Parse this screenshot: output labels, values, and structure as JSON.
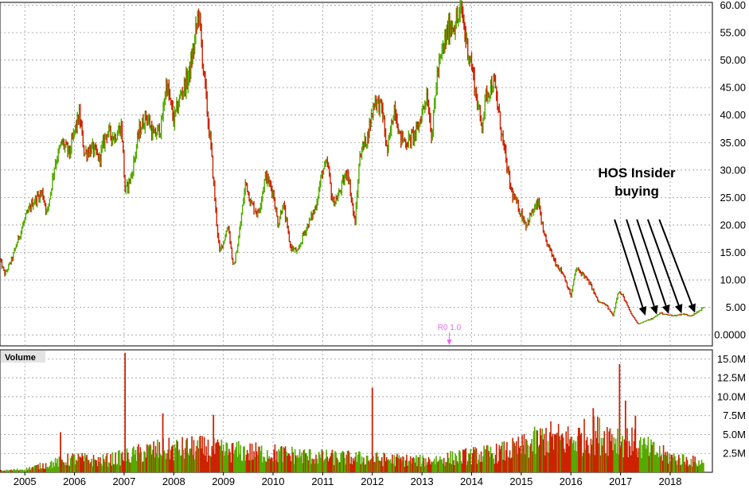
{
  "colors": {
    "up": "#55aa00",
    "down": "#cc2200",
    "grid": "#999999",
    "marker": "#ee66ee",
    "arrow": "#000000"
  },
  "annotation": {
    "line1": "HOS Insider",
    "line2": "buying"
  },
  "marker": {
    "label": "R0 1.0",
    "x": 2013.55
  },
  "volume_panel": {
    "title": "Volume"
  },
  "chart_data": {
    "type": "ohlc",
    "title": "",
    "price_axis": {
      "ylim": [
        -2,
        60.5
      ],
      "ticks": [
        60,
        55,
        50,
        45,
        40,
        35,
        30,
        25,
        20,
        15,
        10,
        5,
        0
      ],
      "tick_labels": [
        "60.00",
        "55.00",
        "50.00",
        "45.00",
        "40.00",
        "35.00",
        "30.00",
        "25.00",
        "20.00",
        "15.00",
        "10.00",
        "5.00",
        "0.0000"
      ]
    },
    "volume_axis": {
      "ylim": [
        0,
        16.2
      ],
      "ticks": [
        15,
        12.5,
        10,
        7.5,
        5,
        2.5
      ],
      "tick_labels": [
        "15.0M",
        "12.5M",
        "10.0M",
        "7.5M",
        "5.0M",
        "2.5M"
      ]
    },
    "x_axis": {
      "xlim": [
        2004.5,
        2018.85
      ],
      "years": [
        2005,
        2006,
        2007,
        2008,
        2009,
        2010,
        2011,
        2012,
        2013,
        2014,
        2015,
        2016,
        2017,
        2018
      ],
      "tick_labels": [
        "2005",
        "2006",
        "2007",
        "2008",
        "2009",
        "2010",
        "2011",
        "2012",
        "2013",
        "2014",
        "2015",
        "2016",
        "2017",
        "2018"
      ]
    },
    "grid": true,
    "price_path": [
      [
        2004.5,
        13.5
      ],
      [
        2004.6,
        11
      ],
      [
        2004.75,
        14
      ],
      [
        2004.85,
        17
      ],
      [
        2005.0,
        21
      ],
      [
        2005.15,
        24
      ],
      [
        2005.35,
        26
      ],
      [
        2005.45,
        22
      ],
      [
        2005.6,
        31
      ],
      [
        2005.75,
        35
      ],
      [
        2005.9,
        33
      ],
      [
        2006.0,
        37
      ],
      [
        2006.1,
        40
      ],
      [
        2006.2,
        33
      ],
      [
        2006.35,
        34
      ],
      [
        2006.5,
        32
      ],
      [
        2006.65,
        37
      ],
      [
        2006.8,
        36
      ],
      [
        2006.95,
        38
      ],
      [
        2007.02,
        26
      ],
      [
        2007.15,
        29
      ],
      [
        2007.3,
        37
      ],
      [
        2007.45,
        40
      ],
      [
        2007.6,
        36
      ],
      [
        2007.75,
        38
      ],
      [
        2007.85,
        46
      ],
      [
        2008.0,
        39
      ],
      [
        2008.15,
        44
      ],
      [
        2008.3,
        47
      ],
      [
        2008.4,
        52
      ],
      [
        2008.5,
        59
      ],
      [
        2008.6,
        48
      ],
      [
        2008.7,
        38
      ],
      [
        2008.75,
        34
      ],
      [
        2008.85,
        22
      ],
      [
        2008.92,
        15
      ],
      [
        2009.0,
        17
      ],
      [
        2009.1,
        20
      ],
      [
        2009.2,
        12
      ],
      [
        2009.3,
        17
      ],
      [
        2009.45,
        28
      ],
      [
        2009.55,
        24
      ],
      [
        2009.7,
        22
      ],
      [
        2009.85,
        29
      ],
      [
        2010.0,
        26
      ],
      [
        2010.1,
        20
      ],
      [
        2010.2,
        24
      ],
      [
        2010.35,
        16
      ],
      [
        2010.5,
        15
      ],
      [
        2010.6,
        18
      ],
      [
        2010.75,
        21
      ],
      [
        2010.85,
        23
      ],
      [
        2011.0,
        30
      ],
      [
        2011.1,
        31
      ],
      [
        2011.2,
        24
      ],
      [
        2011.3,
        25
      ],
      [
        2011.5,
        30
      ],
      [
        2011.65,
        20
      ],
      [
        2011.75,
        33
      ],
      [
        2011.9,
        36
      ],
      [
        2012.05,
        43
      ],
      [
        2012.2,
        41
      ],
      [
        2012.3,
        33
      ],
      [
        2012.45,
        42
      ],
      [
        2012.55,
        36
      ],
      [
        2012.7,
        35
      ],
      [
        2012.9,
        37
      ],
      [
        2013.1,
        44
      ],
      [
        2013.2,
        36
      ],
      [
        2013.3,
        47
      ],
      [
        2013.45,
        53
      ],
      [
        2013.55,
        56
      ],
      [
        2013.7,
        57
      ],
      [
        2013.8,
        59
      ],
      [
        2013.9,
        53
      ],
      [
        2014.0,
        49
      ],
      [
        2014.1,
        43
      ],
      [
        2014.2,
        38
      ],
      [
        2014.3,
        44
      ],
      [
        2014.45,
        46
      ],
      [
        2014.55,
        40
      ],
      [
        2014.7,
        31
      ],
      [
        2014.8,
        26
      ],
      [
        2014.95,
        23
      ],
      [
        2015.1,
        20
      ],
      [
        2015.2,
        22
      ],
      [
        2015.35,
        24
      ],
      [
        2015.45,
        18
      ],
      [
        2015.55,
        16
      ],
      [
        2015.7,
        13
      ],
      [
        2015.85,
        11
      ],
      [
        2016.0,
        7
      ],
      [
        2016.1,
        12
      ],
      [
        2016.25,
        11
      ],
      [
        2016.4,
        9
      ],
      [
        2016.55,
        6
      ],
      [
        2016.7,
        5.5
      ],
      [
        2016.85,
        3.5
      ],
      [
        2016.95,
        8
      ],
      [
        2017.05,
        7
      ],
      [
        2017.2,
        4
      ],
      [
        2017.35,
        2
      ],
      [
        2017.5,
        2.5
      ],
      [
        2017.65,
        3
      ],
      [
        2017.8,
        4
      ],
      [
        2017.95,
        3.6
      ],
      [
        2018.1,
        3.5
      ],
      [
        2018.25,
        3.8
      ],
      [
        2018.4,
        3.5
      ],
      [
        2018.5,
        3.8
      ],
      [
        2018.6,
        4.5
      ],
      [
        2018.68,
        5
      ]
    ],
    "volume_profile": [
      [
        2004.5,
        0.2
      ],
      [
        2005.0,
        0.4
      ],
      [
        2005.5,
        1.1
      ],
      [
        2006.0,
        1.8
      ],
      [
        2006.5,
        1.5
      ],
      [
        2007.0,
        2.0
      ],
      [
        2007.5,
        2.8
      ],
      [
        2008.0,
        3.0
      ],
      [
        2008.5,
        3.2
      ],
      [
        2009.0,
        2.8
      ],
      [
        2010.0,
        2.5
      ],
      [
        2011.0,
        2.0
      ],
      [
        2012.0,
        1.8
      ],
      [
        2013.0,
        1.5
      ],
      [
        2013.5,
        1.8
      ],
      [
        2014.0,
        2.2
      ],
      [
        2014.5,
        2.5
      ],
      [
        2015.0,
        3.2
      ],
      [
        2015.5,
        4.5
      ],
      [
        2016.0,
        4.2
      ],
      [
        2016.5,
        5.0
      ],
      [
        2017.0,
        4.5
      ],
      [
        2017.5,
        3.2
      ],
      [
        2018.0,
        2.0
      ],
      [
        2018.68,
        1.2
      ]
    ],
    "volume_spikes": [
      [
        2005.72,
        5.3
      ],
      [
        2007.02,
        15.8
      ],
      [
        2007.78,
        7.8
      ],
      [
        2008.8,
        7.6
      ],
      [
        2012.0,
        11.2
      ],
      [
        2016.45,
        8.5
      ],
      [
        2016.98,
        14.3
      ],
      [
        2017.1,
        9.5
      ],
      [
        2017.3,
        7.5
      ]
    ],
    "insider_arrows": [
      {
        "from": [
          2016.88,
          21
        ],
        "to": [
          2017.5,
          3.5
        ]
      },
      {
        "from": [
          2017.12,
          21
        ],
        "to": [
          2017.73,
          3.7
        ]
      },
      {
        "from": [
          2017.33,
          21
        ],
        "to": [
          2017.97,
          3.8
        ]
      },
      {
        "from": [
          2017.55,
          21
        ],
        "to": [
          2018.23,
          3.9
        ]
      },
      {
        "from": [
          2017.78,
          21
        ],
        "to": [
          2018.5,
          4.0
        ]
      }
    ]
  }
}
